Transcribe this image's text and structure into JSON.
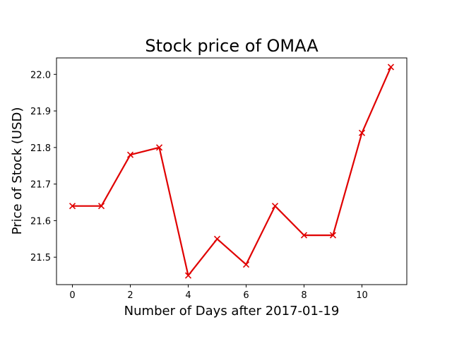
{
  "chart_data": {
    "type": "line",
    "title": "Stock price of OMAA",
    "xlabel": "Number of Days after 2017-01-19",
    "ylabel": "Price of Stock (USD)",
    "xlim": [
      -0.55,
      11.55
    ],
    "ylim": [
      21.425,
      22.045
    ],
    "x_ticks": [
      0,
      2,
      4,
      6,
      8,
      10
    ],
    "x_tick_labels": [
      "0",
      "2",
      "4",
      "6",
      "8",
      "10"
    ],
    "y_ticks": [
      21.5,
      21.6,
      21.7,
      21.8,
      21.9,
      22.0
    ],
    "y_tick_labels": [
      "21.5",
      "21.6",
      "21.7",
      "21.8",
      "21.9",
      "22.0"
    ],
    "grid": false,
    "legend": "none",
    "series": [
      {
        "x": [
          0,
          1,
          2,
          3,
          4,
          5,
          6,
          7,
          8,
          9,
          10,
          11
        ],
        "y": [
          21.64,
          21.64,
          21.78,
          21.8,
          21.45,
          21.55,
          21.48,
          21.64,
          21.56,
          21.56,
          21.84,
          22.02
        ],
        "color": "#e00000",
        "marker": "x"
      }
    ]
  }
}
